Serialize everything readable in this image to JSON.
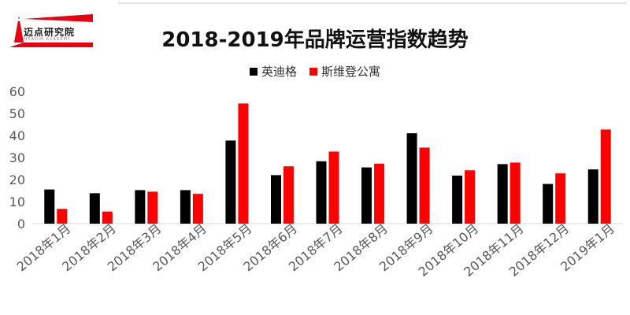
{
  "logo": {
    "name": "迈点研究院",
    "tagline": "MEADIN ACADEMY"
  },
  "chart_data": {
    "type": "bar",
    "title": "2018-2019年品牌运营指数趋势",
    "categories": [
      "2018年1月",
      "2018年2月",
      "2018年3月",
      "2018年4月",
      "2018年5月",
      "2018年6月",
      "2018年7月",
      "2018年8月",
      "2018年9月",
      "2018年10月",
      "2018年11月",
      "2018年12月",
      "2019年1月"
    ],
    "series": [
      {
        "name": "英迪格",
        "color": "#000000",
        "values": [
          15.5,
          13.8,
          15.2,
          15.2,
          37.7,
          22.0,
          28.3,
          25.5,
          41.0,
          21.8,
          27.0,
          18.0,
          24.6
        ]
      },
      {
        "name": "斯维登公寓",
        "color": "#ff0000",
        "values": [
          6.7,
          5.5,
          14.5,
          13.5,
          54.5,
          26.0,
          32.7,
          27.2,
          34.5,
          24.2,
          27.7,
          22.8,
          42.7
        ]
      }
    ],
    "ylim": [
      0,
      60
    ],
    "yticks": [
      0,
      10,
      20,
      30,
      40,
      50,
      60
    ],
    "grid": false,
    "legend_position": "top"
  }
}
